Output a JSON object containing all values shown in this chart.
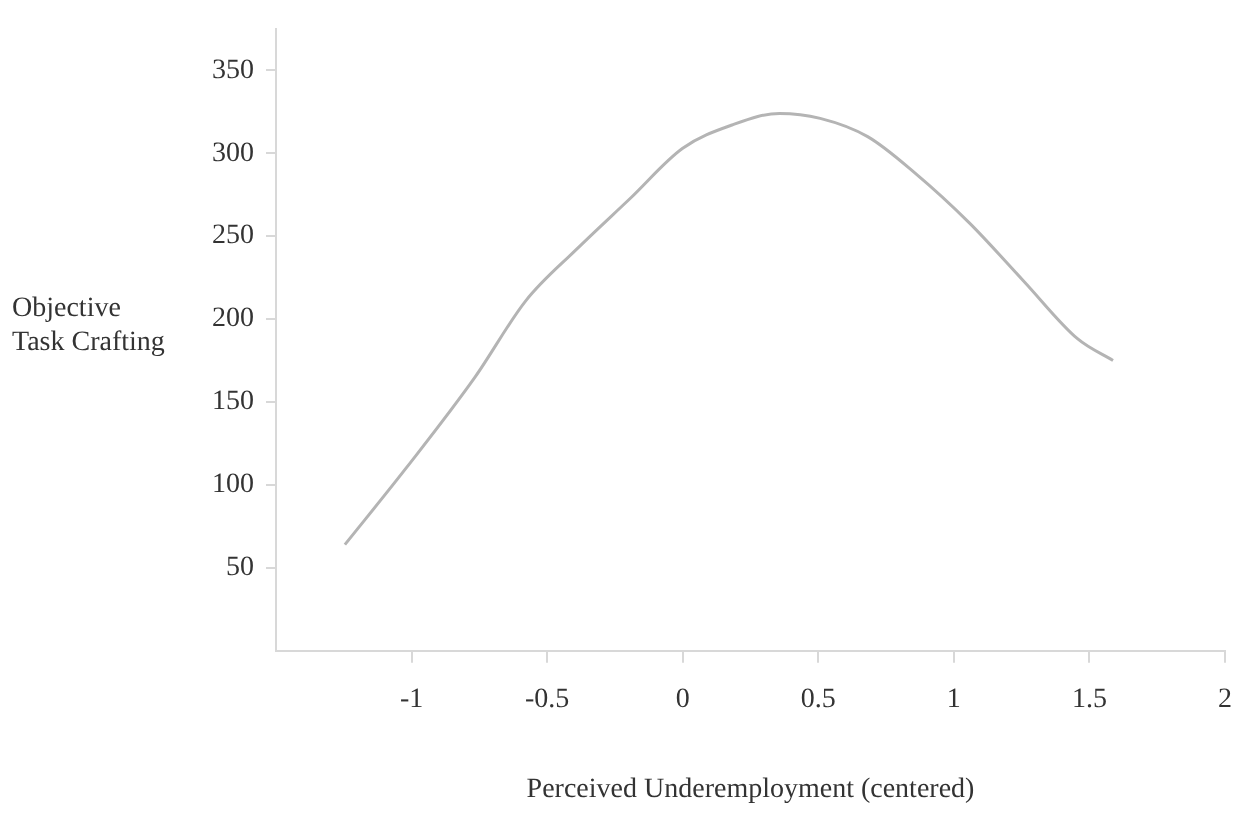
{
  "chart_data": {
    "type": "line",
    "xlabel": "Perceived Underemployment (centered)",
    "ylabel": "Objective Task Crafting",
    "x": [
      -1.246,
      -1.016,
      -0.766,
      -0.579,
      -0.392,
      -0.192,
      0,
      0.182,
      0.357,
      0.507,
      0.682,
      0.857,
      1.057,
      1.257,
      1.457,
      1.587
    ],
    "values": [
      64,
      111,
      165,
      211,
      242,
      273,
      303,
      317,
      324,
      321,
      310,
      288,
      258,
      223,
      188,
      175
    ],
    "color": "#b4b4b4",
    "xlim": [
      -1.5,
      2
    ],
    "xticks": [
      -1,
      -0.5,
      0,
      0.5,
      1,
      1.5,
      2
    ],
    "ylim": [
      0,
      375
    ],
    "yticks": [
      50,
      100,
      150,
      200,
      250,
      300,
      350
    ],
    "grid": false,
    "legend": false,
    "marker": "none",
    "line_style": "solid"
  }
}
